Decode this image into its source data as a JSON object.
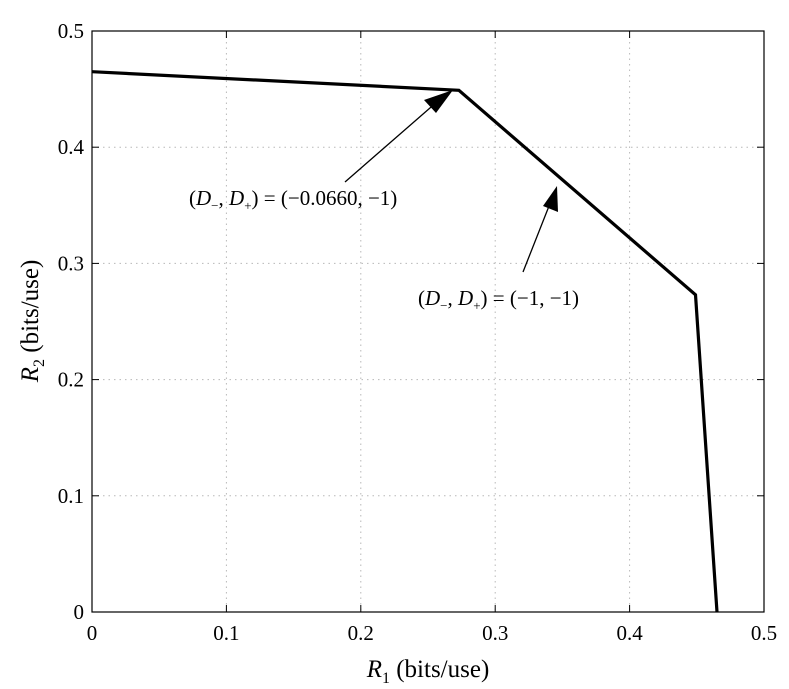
{
  "chart_data": {
    "type": "line",
    "xlabel": "R1 (bits/use)",
    "ylabel": "R2 (bits/use)",
    "xlim": [
      0,
      0.5
    ],
    "ylim": [
      0,
      0.5
    ],
    "xticks": [
      "0",
      "0.1",
      "0.2",
      "0.3",
      "0.4",
      "0.5"
    ],
    "yticks": [
      "0",
      "0.1",
      "0.2",
      "0.3",
      "0.4",
      "0.5"
    ],
    "grid": true,
    "series": [
      {
        "x": [
          0,
          0.273,
          0.449,
          0.465
        ],
        "y": [
          0.465,
          0.449,
          0.273,
          0
        ]
      }
    ],
    "annotations": [
      {
        "text": "(D−, D+) = (−0.0660, −1)",
        "point": [
          0.273,
          0.449
        ]
      },
      {
        "text": "(D−, D+) = (−1, −1)",
        "point": [
          0.347,
          0.375
        ]
      }
    ]
  }
}
